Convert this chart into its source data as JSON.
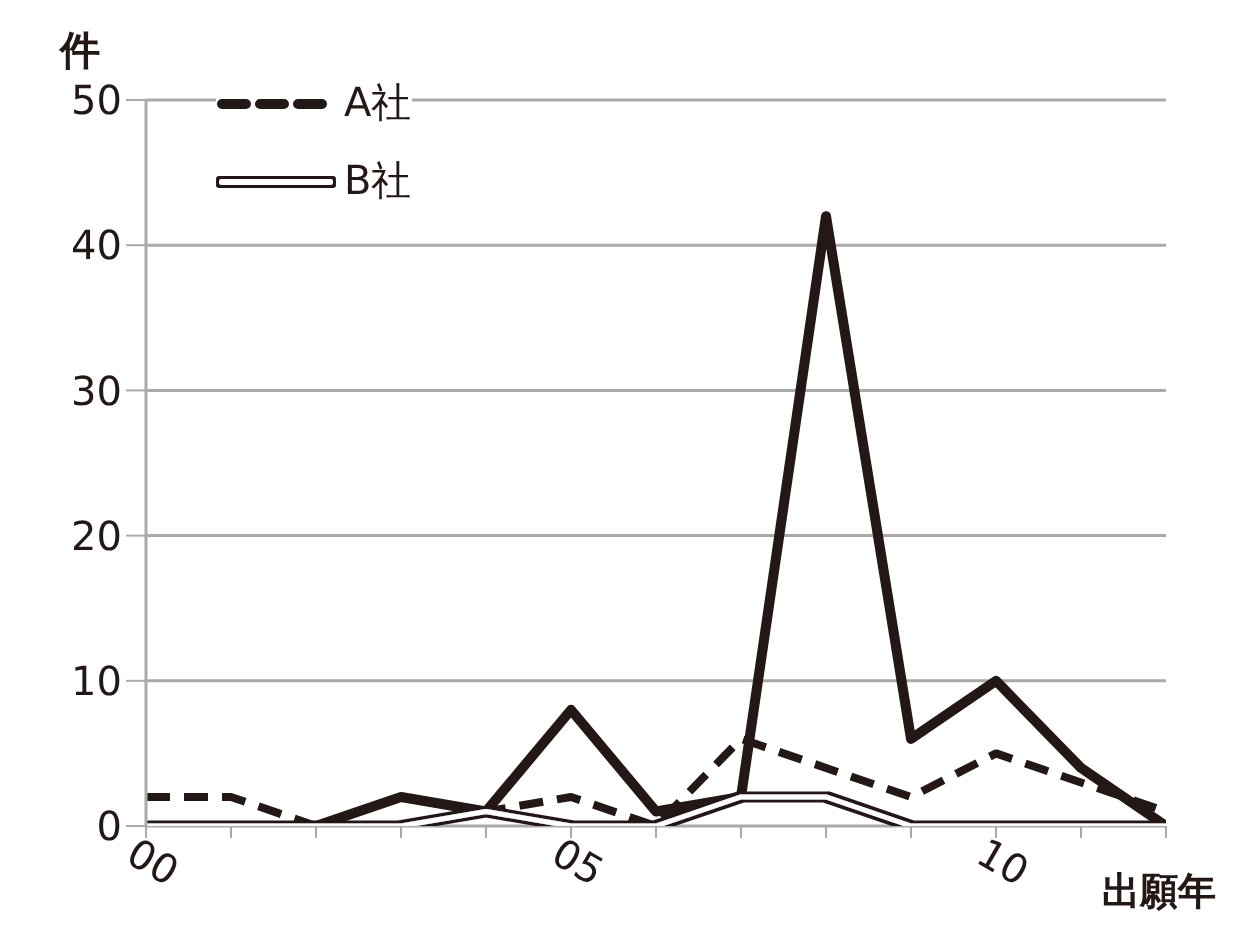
{
  "chart_data": {
    "type": "line",
    "ylabel": "件",
    "xlabel": "出願年",
    "x": [
      2000,
      2001,
      2002,
      2003,
      2004,
      2005,
      2006,
      2007,
      2008,
      2009,
      2010,
      2011,
      2012
    ],
    "series": [
      {
        "color": "#231815",
        "line_style": "solid",
        "values": [
          0,
          0,
          0,
          2,
          1,
          8,
          1,
          2,
          42,
          6,
          10,
          4,
          0
        ]
      },
      {
        "name": "A社",
        "color": "#231815",
        "line_style": "dashed",
        "values": [
          2,
          2,
          0,
          0,
          1,
          2,
          0,
          6,
          4,
          2,
          5,
          3,
          1
        ]
      },
      {
        "name": "B社",
        "color": "#ffffff",
        "line_style": "solid",
        "values": [
          0,
          0,
          0,
          0,
          1,
          0,
          0,
          2,
          2,
          0,
          0,
          0,
          0
        ]
      }
    ],
    "xlim": [
      2000,
      2012
    ],
    "xticks": [
      {
        "value": 2000,
        "label": "00"
      },
      {
        "value": 2001,
        "label": null
      },
      {
        "value": 2002,
        "label": null
      },
      {
        "value": 2003,
        "label": null
      },
      {
        "value": 2004,
        "label": null
      },
      {
        "value": 2005,
        "label": "05"
      },
      {
        "value": 2006,
        "label": null
      },
      {
        "value": 2007,
        "label": null
      },
      {
        "value": 2008,
        "label": null
      },
      {
        "value": 2009,
        "label": null
      },
      {
        "value": 2010,
        "label": "10"
      },
      {
        "value": 2011,
        "label": null
      },
      {
        "value": 2012,
        "label": null
      }
    ],
    "ylim": [
      0,
      50
    ],
    "yticks": [
      0,
      10,
      20,
      30,
      40,
      50
    ],
    "grid": "y",
    "legend": "top left",
    "marker": "none"
  }
}
